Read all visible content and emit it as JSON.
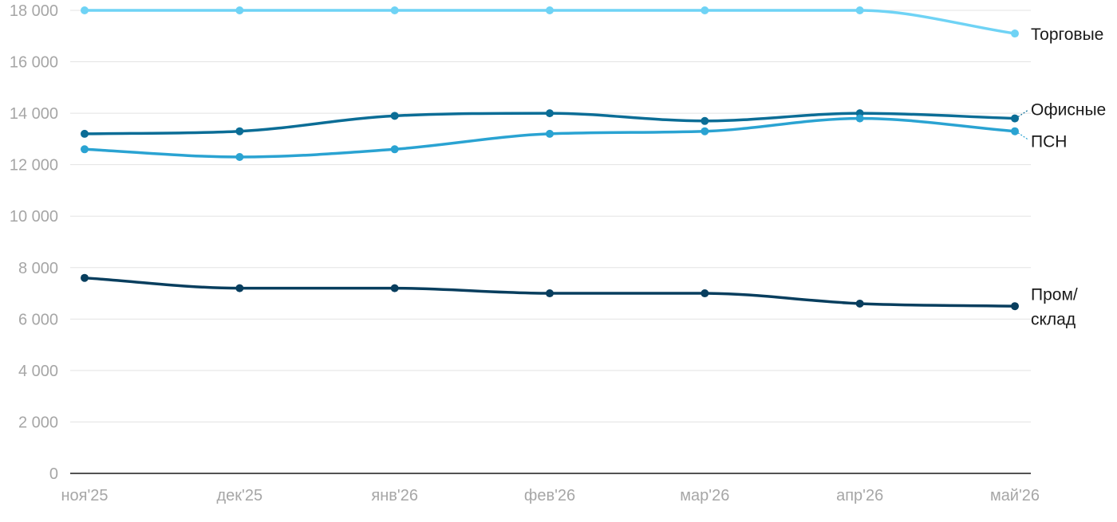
{
  "chart_data": {
    "type": "line",
    "title": "",
    "xlabel": "",
    "ylabel": "",
    "categories": [
      "ноя'25",
      "дек'25",
      "янв'26",
      "фев'26",
      "мар'26",
      "апр'26",
      "май'26"
    ],
    "ylim": [
      0,
      18000
    ],
    "yticks": [
      0,
      2000,
      4000,
      6000,
      8000,
      10000,
      12000,
      14000,
      16000,
      18000
    ],
    "ytick_labels": [
      "0",
      "2 000",
      "4 000",
      "6 000",
      "8 000",
      "10 000",
      "12 000",
      "14 000",
      "16 000",
      "18 000"
    ],
    "grid": true,
    "legend": "none",
    "series": [
      {
        "name": "Торговые",
        "label_lines": [
          "Торговые"
        ],
        "color": "#6fd3f5",
        "values": [
          18000,
          18000,
          18000,
          18000,
          18000,
          18000,
          17100
        ]
      },
      {
        "name": "Офисные",
        "label_lines": [
          "Офисные"
        ],
        "color": "#0b6d96",
        "values": [
          13200,
          13300,
          13900,
          14000,
          13700,
          14000,
          13800
        ]
      },
      {
        "name": "ПСН",
        "label_lines": [
          "ПСН"
        ],
        "color": "#2aa3d2",
        "values": [
          12600,
          12300,
          12600,
          13200,
          13300,
          13800,
          13300
        ]
      },
      {
        "name": "Пром/склад",
        "label_lines": [
          "Пром/",
          "склад"
        ],
        "color": "#083e5e",
        "values": [
          7600,
          7200,
          7200,
          7000,
          7000,
          6600,
          6500
        ]
      }
    ]
  }
}
